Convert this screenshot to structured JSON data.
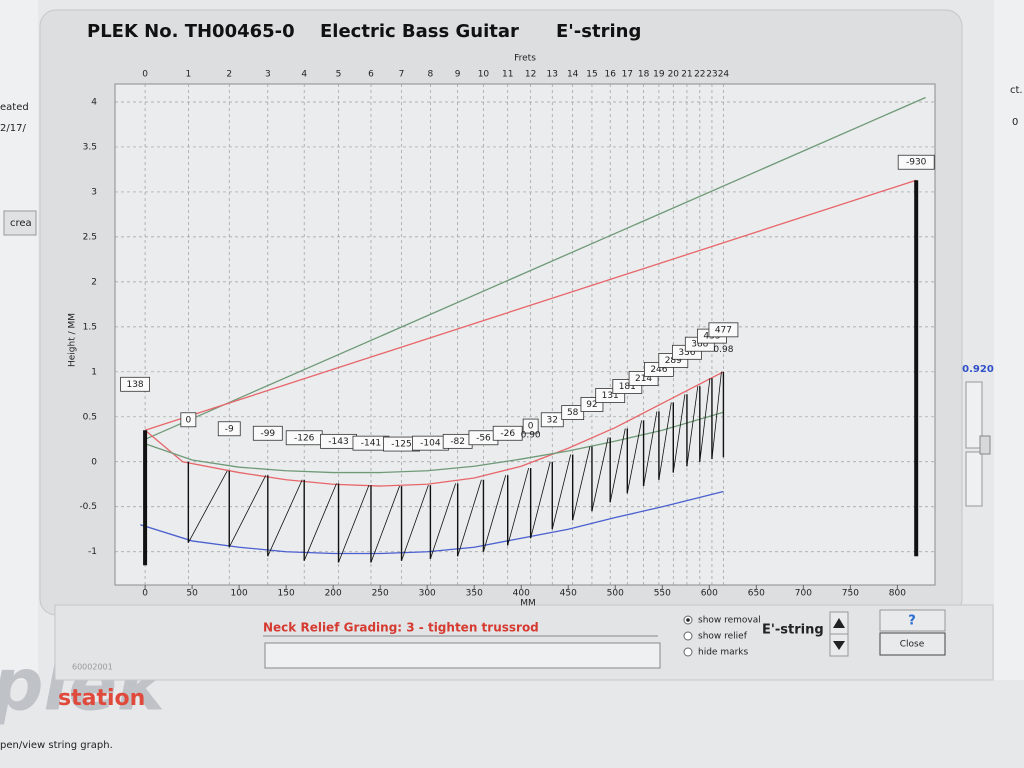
{
  "window": {
    "title_id": "PLEK No. TH00465-0",
    "title_instrument": "Electric Bass Guitar",
    "title_string": "E'-string"
  },
  "chart_data": {
    "type": "line",
    "top_axis_label": "Frets",
    "y_label": "Height / MM",
    "x_label": "MM",
    "xlim": [
      -32,
      840
    ],
    "ylim": [
      -1.37,
      4.2
    ],
    "xticks": [
      0,
      50,
      100,
      150,
      200,
      250,
      300,
      350,
      400,
      450,
      500,
      550,
      600,
      650,
      700,
      750,
      800
    ],
    "yticks": [
      -1,
      -0.5,
      0,
      0.5,
      1,
      1.5,
      2,
      2.5,
      3,
      3.5,
      4
    ],
    "grid": true,
    "fret_ticks": [
      0,
      {
        "value": 46,
        "label": "1"
      },
      {
        "value": 89.5,
        "label": "2"
      },
      {
        "value": 130.5,
        "label": "3"
      },
      {
        "value": 169.2,
        "label": "4"
      },
      {
        "value": 205.7,
        "label": "5"
      },
      {
        "value": 240.2,
        "label": "6"
      },
      {
        "value": 272.7,
        "label": "7"
      },
      {
        "value": 303.4,
        "label": "8"
      },
      {
        "value": 332.4,
        "label": "9"
      },
      {
        "value": 359.8,
        "label": "10"
      },
      {
        "value": 385.6,
        "label": "11"
      },
      {
        "value": 410,
        "label": "12"
      },
      {
        "value": 433,
        "label": "13"
      },
      {
        "value": 454.7,
        "label": "14"
      },
      {
        "value": 475.2,
        "label": "15"
      },
      {
        "value": 494.6,
        "label": "16"
      },
      {
        "value": 512.8,
        "label": "17"
      },
      {
        "value": 530.1,
        "label": "18"
      },
      {
        "value": 546.4,
        "label": "19"
      },
      {
        "value": 561.7,
        "label": "20"
      },
      {
        "value": 576.2,
        "label": "21"
      },
      {
        "value": 589.9,
        "label": "22"
      },
      {
        "value": 602.8,
        "label": "23"
      },
      {
        "value": 615,
        "label": "24"
      }
    ],
    "series": [
      {
        "color": "#6f9a78",
        "x": [
          0,
          830
        ],
        "values": [
          0.25,
          4.05
        ]
      },
      {
        "color": "#e8666a",
        "x": [
          0,
          820
        ],
        "values": [
          0.35,
          3.13
        ]
      },
      {
        "color": "#e8666a",
        "x": [
          0,
          40,
          100,
          150,
          200,
          250,
          300,
          350,
          400,
          450,
          500,
          550,
          615
        ],
        "values": [
          0.35,
          0.0,
          -0.12,
          -0.2,
          -0.25,
          -0.27,
          -0.25,
          -0.18,
          -0.05,
          0.15,
          0.38,
          0.65,
          1.0
        ]
      },
      {
        "color": "#6f9a78",
        "x": [
          0,
          50,
          100,
          150,
          200,
          250,
          300,
          350,
          400,
          450,
          500,
          550,
          615
        ],
        "values": [
          0.2,
          0.02,
          -0.06,
          -0.1,
          -0.12,
          -0.12,
          -0.1,
          -0.05,
          0.03,
          0.12,
          0.23,
          0.35,
          0.55
        ]
      },
      {
        "color": "#4a5fd0",
        "x": [
          -5,
          50,
          100,
          150,
          200,
          250,
          300,
          350,
          400,
          450,
          500,
          550,
          615
        ],
        "values": [
          -0.7,
          -0.88,
          -0.95,
          -1.0,
          -1.02,
          -1.02,
          -1.0,
          -0.95,
          -0.85,
          -0.75,
          -0.62,
          -0.5,
          -0.33
        ]
      }
    ],
    "fret_color": "#111111",
    "fret_tops": [
      0.0,
      -0.1,
      -0.15,
      -0.2,
      -0.24,
      -0.26,
      -0.27,
      -0.26,
      -0.24,
      -0.2,
      -0.15,
      -0.07,
      0.0,
      0.08,
      0.17,
      0.27,
      0.37,
      0.46,
      0.56,
      0.66,
      0.75,
      0.84,
      0.93,
      1.0
    ],
    "fret_bottoms": [
      -0.9,
      -0.95,
      -1.05,
      -1.1,
      -1.12,
      -1.12,
      -1.1,
      -1.08,
      -1.05,
      -1.0,
      -0.93,
      -0.85,
      -0.75,
      -0.65,
      -0.55,
      -0.45,
      -0.35,
      -0.27,
      -0.2,
      -0.12,
      -0.05,
      0.0,
      0.03,
      0.05
    ],
    "removal_values": [
      0,
      -9,
      -99,
      -126,
      -143,
      -141,
      -125,
      -104,
      -82,
      -56,
      -26,
      0,
      32,
      58,
      92,
      131,
      181,
      214,
      246,
      289,
      336,
      388,
      433,
      477
    ],
    "nut": {
      "x": 0,
      "top": 0.35,
      "bottom": -1.15,
      "removal": 138
    },
    "bridge": {
      "x": 820,
      "top": 3.13,
      "bottom": -1.05,
      "removal": -930
    },
    "annotations": [
      {
        "text": "0.90",
        "x": 410,
        "y": 0.3
      },
      {
        "text": "0.98",
        "x": 615,
        "y": 1.25
      }
    ]
  },
  "controls": {
    "grading": "Neck Relief Grading: 3 - tighten trussrod",
    "options": [
      "show removal",
      "show relief",
      "hide marks"
    ],
    "selected": 0,
    "string": "E'-string",
    "help": "?",
    "close": "Close",
    "slider_value": "0.920"
  },
  "background": {
    "left_texts": [
      "eated",
      "2/17/"
    ],
    "button": "crea",
    "code": "60002001",
    "logo": "plek",
    "logo_sub": "station",
    "status": "pen/view string graph.",
    "right_texts": [
      "ct.",
      "0"
    ]
  }
}
